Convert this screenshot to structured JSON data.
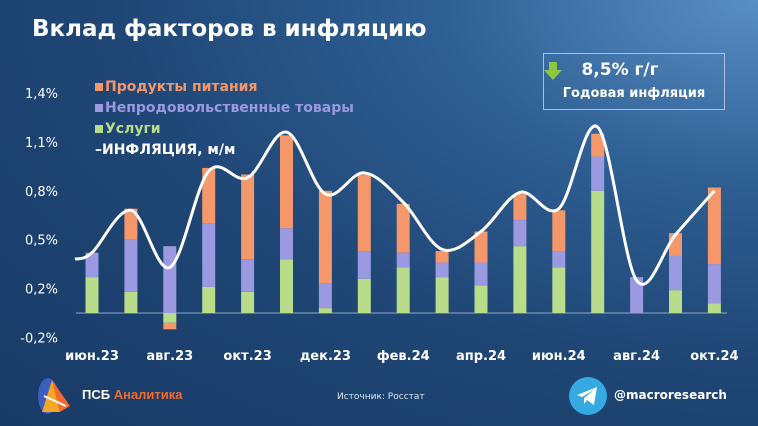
{
  "title": "Вклад факторов в инфляцию",
  "annual_box": {
    "value": "8,5% г/г",
    "label": "Годовая инфляция",
    "arrow_icon": "arrow-down-icon",
    "arrow_color": "#8dc63f"
  },
  "footer": {
    "brand_prefix": "ПСБ",
    "brand_suffix": "Аналитика",
    "source": "Источник: Росстат",
    "telegram_handle": "@macroresearch"
  },
  "chart_data": {
    "type": "bar",
    "stacked": true,
    "categories": [
      "июн.23",
      "июл.23",
      "авг.23",
      "сен.23",
      "окт.23",
      "ноя.23",
      "дек.23",
      "янв.24",
      "фев.24",
      "мар.24",
      "апр.24",
      "май.24",
      "июн.24",
      "июл.24",
      "авг.24",
      "сен.24",
      "окт.24"
    ],
    "x_tick_labels": [
      "июн.23",
      "авг.23",
      "окт.23",
      "дек.23",
      "фев.24",
      "апр.24",
      "июн.24",
      "авг.24",
      "окт.24"
    ],
    "y_tick_labels": [
      "1,4%",
      "1,1%",
      "0,8%",
      "0,5%",
      "0,2%",
      "-0,2%"
    ],
    "y_ticks": [
      1.35,
      1.05,
      0.75,
      0.45,
      0.15,
      -0.15
    ],
    "ylim": [
      -0.15,
      1.45
    ],
    "grid": false,
    "legend_position": "top-left",
    "series": [
      {
        "name": "Услуги",
        "color": "#b9dc8a",
        "values": [
          0.22,
          0.13,
          -0.06,
          0.16,
          0.13,
          0.33,
          0.03,
          0.21,
          0.28,
          0.22,
          0.17,
          0.41,
          0.28,
          0.75,
          0.0,
          0.14,
          0.06
        ]
      },
      {
        "name": "Непродовольственные товары",
        "color": "#9b9ae0",
        "values": [
          0.15,
          0.32,
          0.41,
          0.39,
          0.2,
          0.19,
          0.15,
          0.17,
          0.09,
          0.09,
          0.14,
          0.16,
          0.1,
          0.21,
          0.22,
          0.21,
          0.24
        ]
      },
      {
        "name": "Продукты питания",
        "color": "#f4976a",
        "values": [
          0.0,
          0.19,
          -0.04,
          0.34,
          0.52,
          0.57,
          0.57,
          0.47,
          0.3,
          0.07,
          0.19,
          0.16,
          0.25,
          0.14,
          0.0,
          0.14,
          0.47
        ]
      }
    ],
    "line": {
      "name": "ИНФЛЯЦИЯ, м/м",
      "color": "#ffffff",
      "values": [
        0.37,
        0.63,
        0.28,
        0.87,
        0.83,
        1.11,
        0.73,
        0.86,
        0.68,
        0.39,
        0.5,
        0.74,
        0.64,
        1.14,
        0.2,
        0.48,
        0.75
      ]
    }
  }
}
